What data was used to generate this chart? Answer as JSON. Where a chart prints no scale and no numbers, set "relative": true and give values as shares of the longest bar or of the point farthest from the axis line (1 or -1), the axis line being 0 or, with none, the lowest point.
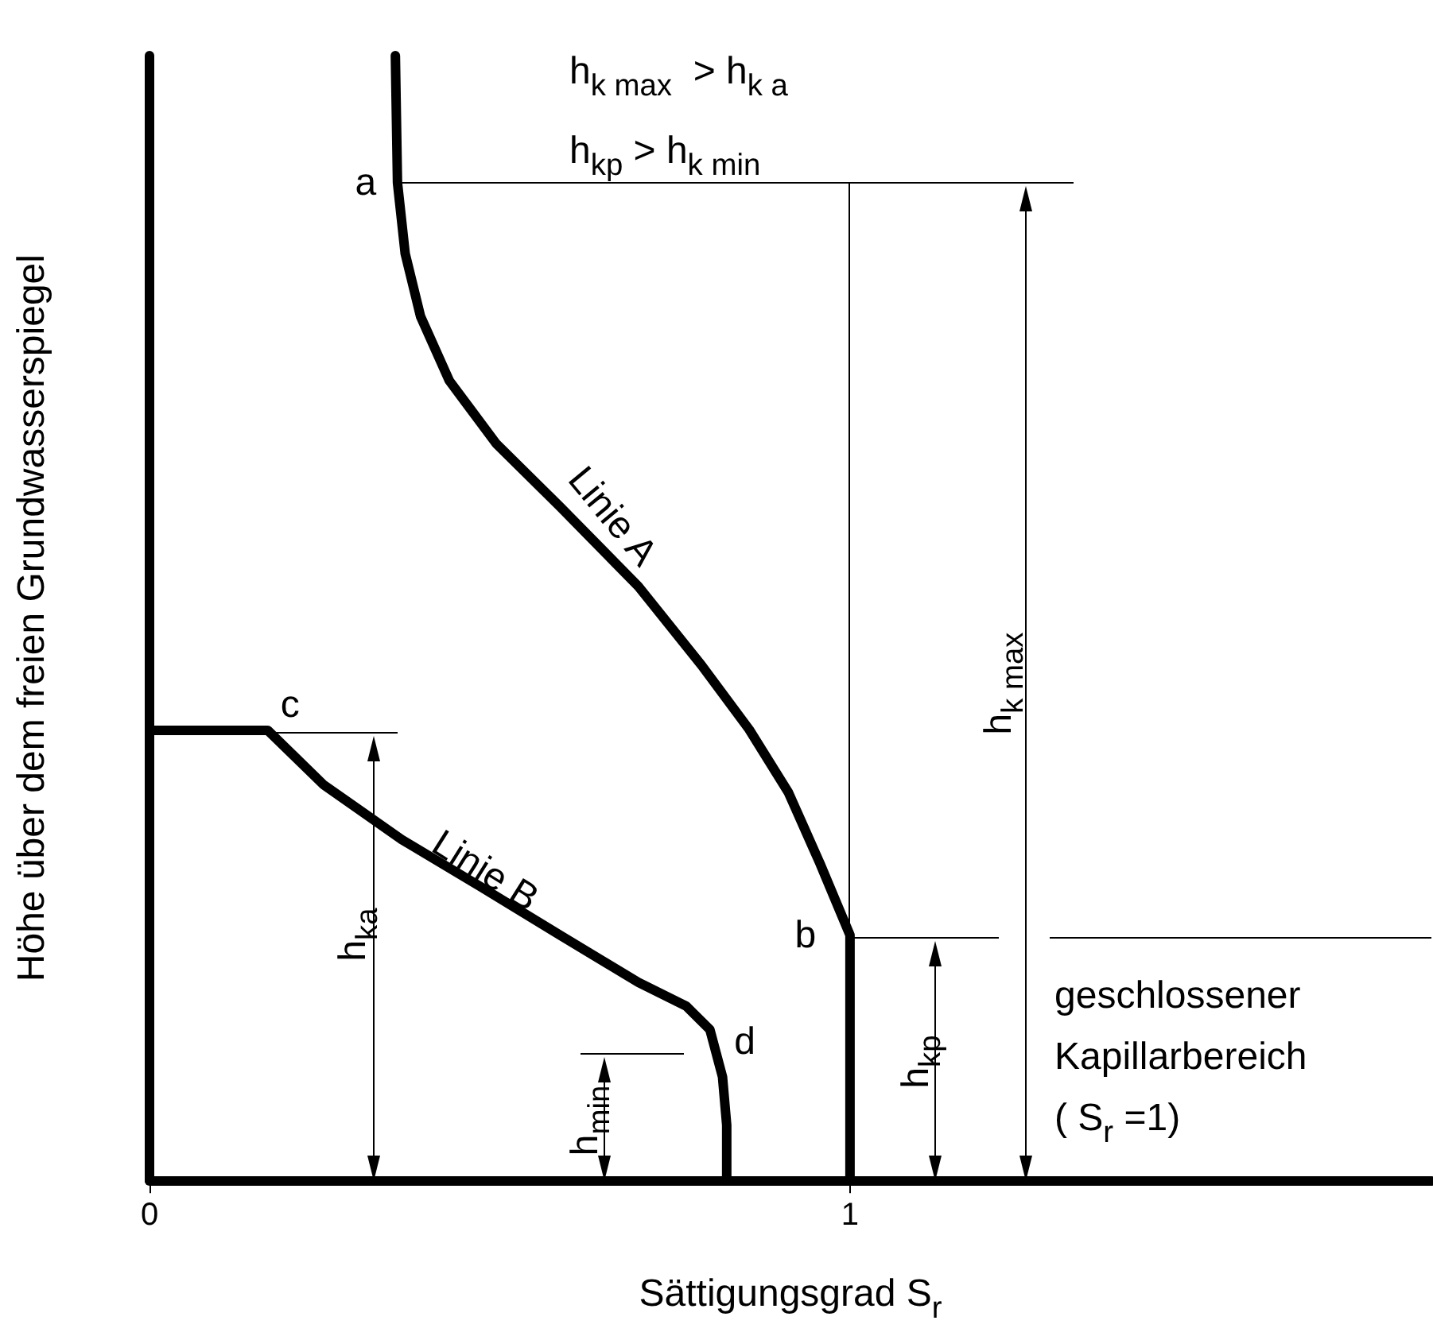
{
  "chart_data": {
    "type": "line",
    "relative": true,
    "xlabel": "Sättigungsgrad S$_{r}$",
    "ylabel": "Höhe über dem freien Grundwasserspiegel",
    "xlim": [
      0,
      1.83
    ],
    "xticks": [
      0,
      1
    ],
    "grid": false,
    "legend": false,
    "line_style": "solid",
    "series": [
      {
        "name": "Linie A",
        "color": "#000000",
        "x": [
          0.351,
          0.354,
          0.365,
          0.387,
          0.428,
          0.495,
          0.586,
          0.698,
          0.788,
          0.856,
          0.912,
          0.957,
          1,
          1
        ],
        "values": [
          1,
          0.887,
          0.824,
          0.768,
          0.711,
          0.655,
          0.599,
          0.528,
          0.458,
          0.401,
          0.345,
          0.282,
          0.218,
          0
        ]
      },
      {
        "name": "Linie B",
        "color": "#000000",
        "x": [
          0,
          0.169,
          0.248,
          0.36,
          0.473,
          0.586,
          0.698,
          0.766,
          0.8,
          0.818,
          0.824,
          0.824
        ],
        "values": [
          0.4,
          0.4,
          0.352,
          0.303,
          0.261,
          0.218,
          0.176,
          0.155,
          0.134,
          0.092,
          0.049,
          0
        ]
      }
    ],
    "annotations": [
      "h$_{k max}$  > h$_{k a}$",
      "h$_{kp}$ > h$_{k min}$",
      {
        "text": "a",
        "x": 0.354,
        "y": 0.887
      },
      {
        "text": "b",
        "x": 1,
        "y": 0.218
      },
      {
        "text": "c",
        "x": 0.169,
        "y": 0.4
      },
      {
        "text": "d",
        "x": 0.818,
        "y": 0.092
      },
      "h$_{k max}$",
      "h$_{ka}$",
      "h$_{min}$",
      "h$_{kp}$",
      "geschlossener\nKapillarbereich\n( S$_{r}$ =1)"
    ]
  }
}
